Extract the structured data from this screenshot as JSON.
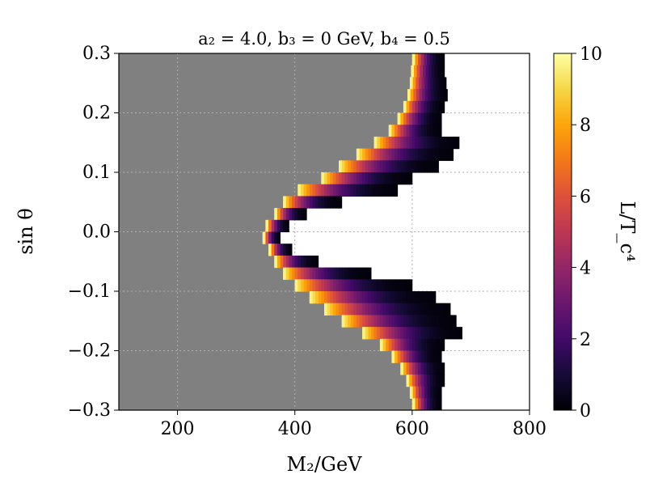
{
  "chart_data": {
    "type": "heatmap",
    "title": "a₂ = 4.0,  b₃ = 0  GeV,  b₄ = 0.5",
    "xlabel": "M₂/GeV",
    "ylabel": "sin θ",
    "xlim": [
      100,
      800
    ],
    "ylim": [
      -0.3,
      0.3
    ],
    "xticks": [
      "200",
      "400",
      "600",
      "800"
    ],
    "yticks": [
      "−0.3",
      "−0.2",
      "−0.1",
      "0.0",
      "0.1",
      "0.2",
      "0.3"
    ],
    "grid": true,
    "background_color": "#808080",
    "colormap": "inferno",
    "colorbar": {
      "label": "L/T_c⁴",
      "range": [
        0,
        10
      ],
      "ticks": [
        "0",
        "2",
        "4",
        "6",
        "8",
        "10"
      ]
    },
    "region": {
      "description_note": "",
      "filled_band_rows": [
        {
          "sin": 0.29,
          "m_start": 600,
          "m_end": 655
        },
        {
          "sin": 0.27,
          "m_start": 598,
          "m_end": 655
        },
        {
          "sin": 0.25,
          "m_start": 596,
          "m_end": 658
        },
        {
          "sin": 0.23,
          "m_start": 592,
          "m_end": 660
        },
        {
          "sin": 0.21,
          "m_start": 585,
          "m_end": 655
        },
        {
          "sin": 0.19,
          "m_start": 575,
          "m_end": 650
        },
        {
          "sin": 0.17,
          "m_start": 560,
          "m_end": 650
        },
        {
          "sin": 0.15,
          "m_start": 535,
          "m_end": 680
        },
        {
          "sin": 0.13,
          "m_start": 505,
          "m_end": 670
        },
        {
          "sin": 0.11,
          "m_start": 475,
          "m_end": 645
        },
        {
          "sin": 0.09,
          "m_start": 445,
          "m_end": 600
        },
        {
          "sin": 0.07,
          "m_start": 405,
          "m_end": 575
        },
        {
          "sin": 0.05,
          "m_start": 380,
          "m_end": 480
        },
        {
          "sin": 0.03,
          "m_start": 365,
          "m_end": 420
        },
        {
          "sin": 0.01,
          "m_start": 350,
          "m_end": 390
        },
        {
          "sin": -0.01,
          "m_start": 345,
          "m_end": 375
        },
        {
          "sin": -0.03,
          "m_start": 355,
          "m_end": 395
        },
        {
          "sin": -0.05,
          "m_start": 365,
          "m_end": 440
        },
        {
          "sin": -0.07,
          "m_start": 380,
          "m_end": 530
        },
        {
          "sin": -0.09,
          "m_start": 400,
          "m_end": 600
        },
        {
          "sin": -0.11,
          "m_start": 425,
          "m_end": 640
        },
        {
          "sin": -0.13,
          "m_start": 450,
          "m_end": 665
        },
        {
          "sin": -0.15,
          "m_start": 480,
          "m_end": 675
        },
        {
          "sin": -0.17,
          "m_start": 515,
          "m_end": 685
        },
        {
          "sin": -0.19,
          "m_start": 545,
          "m_end": 655
        },
        {
          "sin": -0.21,
          "m_start": 565,
          "m_end": 650
        },
        {
          "sin": -0.23,
          "m_start": 580,
          "m_end": 655
        },
        {
          "sin": -0.25,
          "m_start": 590,
          "m_end": 655
        },
        {
          "sin": -0.27,
          "m_start": 596,
          "m_end": 650
        },
        {
          "sin": -0.29,
          "m_start": 600,
          "m_end": 650
        }
      ]
    }
  }
}
